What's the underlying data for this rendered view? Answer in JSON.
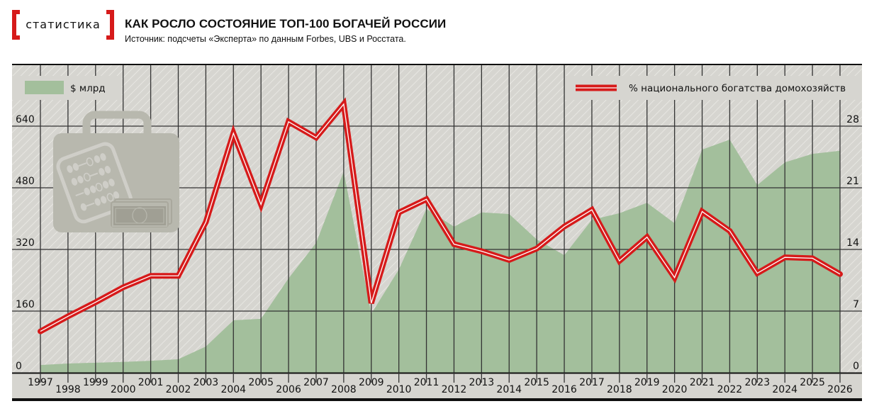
{
  "header": {
    "brand_label": "статистика",
    "title": "КАК РОСЛО СОСТОЯНИЕ ТОП-100 БОГАЧЕЙ РОССИИ",
    "source": "Источник: подсчеты «Эксперта» по данным Forbes, UBS и Росстата."
  },
  "colors": {
    "accent_red": "#d61a1a",
    "area_green": "#a3bf9c",
    "background_gray": "#d6d5d0",
    "grid": "#333333",
    "icon_gray": "#b8b8ae"
  },
  "legend": {
    "area_label": "$ млрд",
    "line_label": "% национального богатства домохозяйств"
  },
  "chart_data": {
    "type": "area+line",
    "title": "КАК РОСЛО СОСТОЯНИЕ ТОП-100 БОГАЧЕЙ РОССИИ",
    "subtitle": "Источник: подсчеты «Эксперта» по данным Forbes, UBS и Росстата.",
    "xlabel": "",
    "ylabel_left": "$ млрд",
    "ylabel_right": "% национального богатства домохозяйств",
    "categories": [
      "1997",
      "1998",
      "1999",
      "2000",
      "2001",
      "2002",
      "2003",
      "2004",
      "2005",
      "2006",
      "2007",
      "2008",
      "2009",
      "2010",
      "2011",
      "2012",
      "2013",
      "2014",
      "2015",
      "2016",
      "2017",
      "2018",
      "2019",
      "2020",
      "2021",
      "2022",
      "2023",
      "2024",
      "2025",
      "2026"
    ],
    "series": [
      {
        "name": "$ млрд",
        "type": "area",
        "axis": "left",
        "values": [
          20,
          24,
          26,
          28,
          31,
          35,
          68,
          136,
          140,
          245,
          337,
          522,
          153,
          268,
          425,
          379,
          416,
          412,
          346,
          305,
          397,
          414,
          441,
          388,
          579,
          605,
          487,
          546,
          568,
          576
        ]
      },
      {
        "name": "% национального богатства домохозяйств",
        "type": "line",
        "axis": "right",
        "values": [
          4.7,
          6.4,
          8.0,
          9.7,
          11.0,
          11.0,
          17.1,
          27.2,
          19.1,
          28.5,
          26.7,
          30.5,
          7.9,
          18.2,
          19.7,
          14.6,
          13.8,
          12.8,
          14.1,
          16.6,
          18.5,
          12.7,
          15.4,
          10.8,
          18.3,
          16.1,
          11.3,
          13.1,
          13.0,
          11.2
        ]
      }
    ],
    "yticks_left": [
      "0",
      "160",
      "320",
      "480",
      "640"
    ],
    "yticks_right": [
      "0",
      "7",
      "14",
      "21",
      "28"
    ],
    "ylim_left": [
      0,
      640
    ],
    "ylim_right": [
      0,
      28
    ],
    "grid": true,
    "legend_position": "top"
  }
}
